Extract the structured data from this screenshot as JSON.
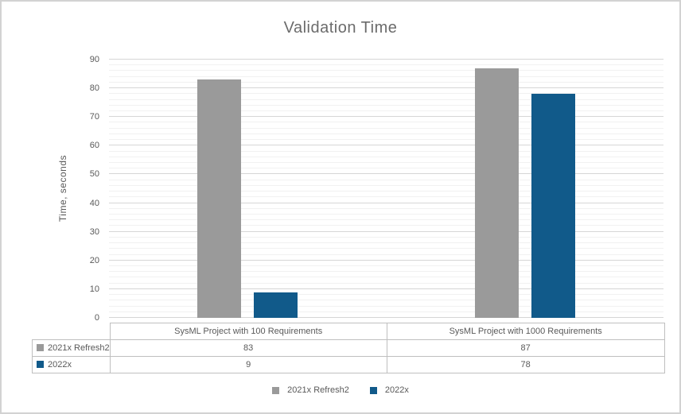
{
  "chart_data": {
    "type": "bar",
    "title": "Validation Time",
    "xlabel": "",
    "ylabel": "Time, seconds",
    "categories": [
      "SysML Project with 100 Requirements",
      "SysML Project with 1000 Requirements"
    ],
    "series": [
      {
        "name": "2021x Refresh2",
        "color": "#9a9a9a",
        "values": [
          83,
          87
        ]
      },
      {
        "name": "2022x",
        "color": "#115a8a",
        "values": [
          9,
          78
        ]
      }
    ],
    "ylim": [
      0,
      90
    ],
    "y_ticks": [
      0,
      10,
      20,
      30,
      40,
      50,
      60,
      70,
      80,
      90
    ],
    "y_major_step": 10,
    "y_minor_step": 2,
    "grid": true,
    "legend_position": "bottom",
    "data_table_shown": true
  }
}
